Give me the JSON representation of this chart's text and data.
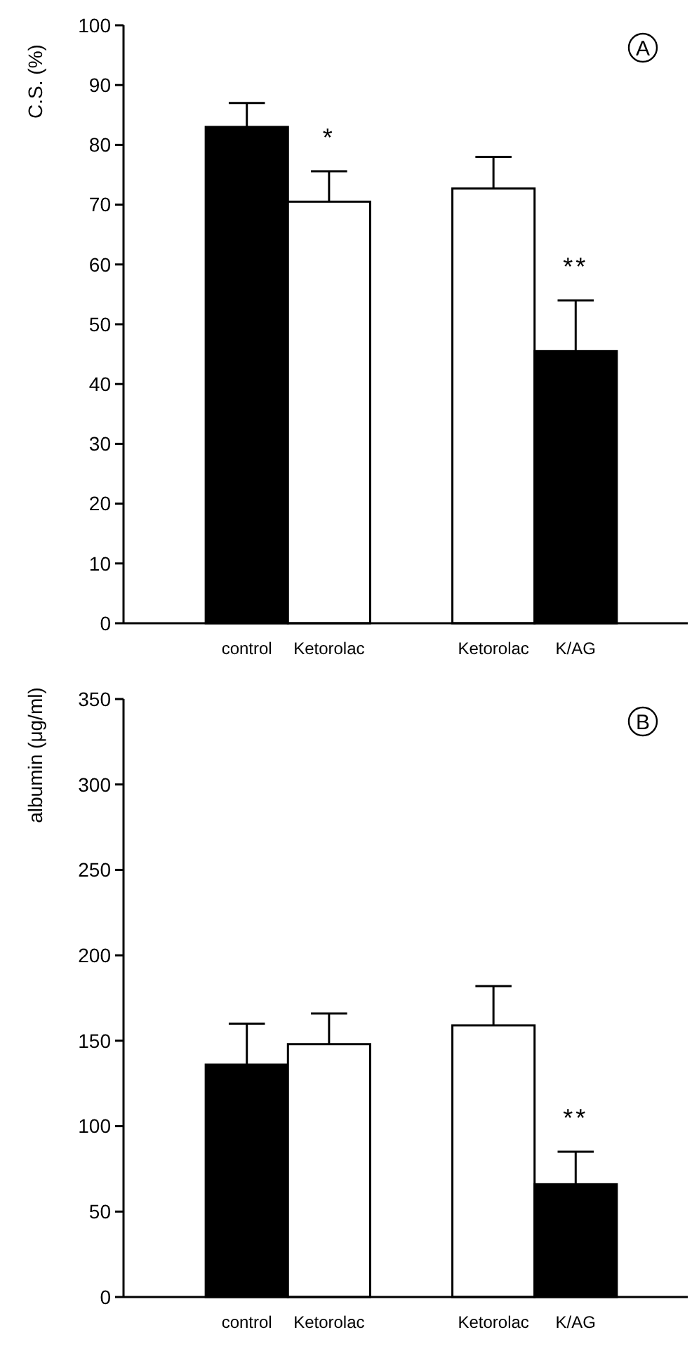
{
  "chart_data": [
    {
      "type": "bar",
      "ylabel": "C.S. (%)",
      "categories": [
        "control",
        "Ketorolac",
        null,
        "Ketorolac",
        "K/AG"
      ],
      "values": [
        83,
        70.5,
        null,
        72.7,
        45.5
      ],
      "colors": [
        "#000000",
        "#ffffff",
        null,
        "#ffffff",
        "#000000"
      ],
      "errors": [
        [
          83,
          87
        ],
        [
          70.5,
          75.6
        ],
        null,
        [
          72.7,
          78
        ],
        [
          45.5,
          54
        ]
      ],
      "ylim": [
        0,
        100
      ],
      "yticks": [
        0,
        10,
        20,
        30,
        40,
        50,
        60,
        70,
        80,
        90,
        100
      ],
      "annotations": [
        "*",
        "**",
        "A"
      ]
    },
    {
      "type": "bar",
      "ylabel": "albumin (μg/ml)",
      "categories": [
        "control",
        "Ketorolac",
        null,
        "Ketorolac",
        "K/AG"
      ],
      "values": [
        136,
        148,
        null,
        159,
        66
      ],
      "colors": [
        "#000000",
        "#ffffff",
        null,
        "#ffffff",
        "#000000"
      ],
      "errors": [
        [
          136,
          160
        ],
        [
          148,
          166
        ],
        null,
        [
          159,
          182
        ],
        [
          66,
          85
        ]
      ],
      "ylim": [
        0,
        350
      ],
      "yticks": [
        0,
        50,
        100,
        150,
        200,
        250,
        300,
        350
      ],
      "annotations": [
        "**",
        "B"
      ]
    }
  ]
}
